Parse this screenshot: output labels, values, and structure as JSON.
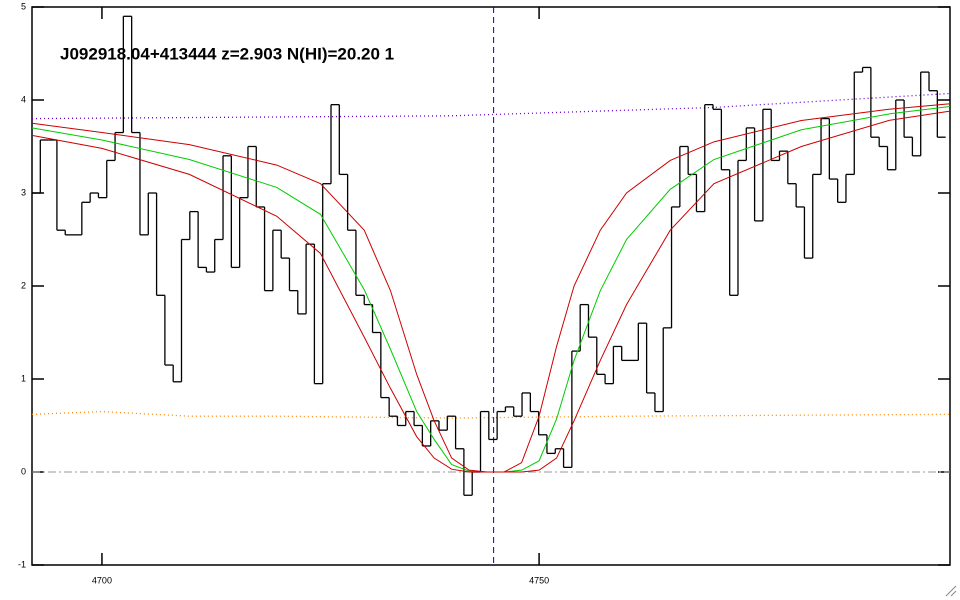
{
  "chart_data": {
    "type": "histogram",
    "title": "J092918.04+413444 z=2.903 N(HI)=20.20 1",
    "color": "#000000",
    "bins": [
      4692.0,
      4692.95,
      4693.9,
      4694.85,
      4695.8,
      4696.75,
      4697.7,
      4698.65,
      4699.6,
      4700.55,
      4701.5,
      4702.45,
      4703.4,
      4704.35,
      4705.3,
      4706.25,
      4707.2,
      4708.15,
      4709.1,
      4710.05,
      4711.0,
      4711.95,
      4712.9,
      4713.85,
      4714.8,
      4715.75,
      4716.7,
      4717.65,
      4718.6,
      4719.55,
      4720.5,
      4721.45,
      4722.4,
      4723.35,
      4724.3,
      4725.25,
      4726.2,
      4727.15,
      4728.1,
      4729.05,
      4730.0,
      4730.95,
      4731.9,
      4732.85,
      4733.8,
      4734.75,
      4735.7,
      4736.65,
      4737.6,
      4738.55,
      4739.5,
      4740.45,
      4741.4,
      4742.35,
      4743.3,
      4744.25,
      4745.2,
      4746.15,
      4747.1,
      4748.05,
      4749.0,
      4749.95,
      4750.9,
      4751.85,
      4752.8,
      4753.75,
      4754.7,
      4755.65,
      4756.6,
      4757.55,
      4758.5,
      4759.45,
      4760.4,
      4761.35,
      4762.3,
      4763.25,
      4764.2,
      4765.15,
      4766.1,
      4767.05,
      4768.0,
      4768.95,
      4769.9,
      4770.85,
      4771.8,
      4772.75,
      4773.7,
      4774.65,
      4775.6,
      4776.55,
      4777.5,
      4778.45,
      4779.4,
      4780.35,
      4781.3,
      4782.25,
      4783.2,
      4784.15,
      4785.1,
      4786.05,
      4787.0,
      4787.95,
      4788.9,
      4789.85,
      4790.8,
      4791.75,
      4792.7,
      4793.65,
      4794.6,
      4795.55,
      4796.5
    ],
    "values": [
      3.0,
      3.57,
      3.57,
      2.6,
      2.55,
      2.55,
      2.9,
      3.0,
      2.95,
      3.35,
      3.65,
      4.9,
      3.65,
      2.55,
      3.0,
      1.9,
      1.15,
      0.97,
      2.5,
      2.8,
      2.2,
      2.15,
      2.5,
      3.4,
      2.2,
      2.95,
      3.5,
      2.85,
      1.95,
      2.6,
      2.3,
      1.95,
      1.7,
      2.45,
      0.95,
      3.1,
      3.95,
      3.2,
      2.6,
      1.9,
      1.8,
      1.5,
      0.8,
      0.6,
      0.5,
      0.65,
      0.5,
      0.28,
      0.55,
      0.45,
      0.6,
      0.25,
      -0.25,
      0.0,
      0.65,
      0.35,
      0.65,
      0.7,
      0.6,
      0.85,
      0.65,
      0.4,
      0.2,
      0.25,
      0.05,
      1.3,
      1.8,
      1.45,
      1.05,
      0.95,
      1.35,
      1.2,
      1.2,
      1.6,
      0.85,
      0.65,
      1.55,
      2.85,
      3.5,
      3.2,
      2.8,
      3.95,
      3.9,
      3.25,
      1.9,
      3.35,
      3.7,
      2.7,
      3.9,
      3.35,
      3.45,
      3.1,
      2.85,
      2.3,
      3.2,
      3.8,
      3.15,
      2.9,
      3.2,
      4.3,
      4.35,
      3.6,
      3.5,
      3.25,
      4.0,
      3.6,
      3.4,
      4.3,
      4.1,
      3.6
    ],
    "series": [
      {
        "color": "#00cc00",
        "style": "solid",
        "x": [
          4692,
          4700,
          4710,
          4720,
          4725,
          4730,
          4733,
          4736,
          4738,
          4740,
          4742,
          4744,
          4746,
          4748,
          4750,
          4752,
          4754,
          4757,
          4760,
          4765,
          4770,
          4780,
          4790,
          4797
        ],
        "values": [
          3.7,
          3.57,
          3.36,
          3.06,
          2.77,
          1.96,
          1.32,
          0.65,
          0.35,
          0.08,
          0.01,
          0.0,
          0.0,
          0.02,
          0.12,
          0.57,
          1.2,
          1.95,
          2.5,
          3.04,
          3.36,
          3.68,
          3.85,
          3.93
        ]
      },
      {
        "color": "#cc0000",
        "style": "solid",
        "x": [
          4692,
          4700,
          4710,
          4720,
          4725,
          4730,
          4733,
          4736,
          4738,
          4740,
          4742,
          4744,
          4746,
          4748,
          4750,
          4752,
          4754,
          4757,
          4760,
          4765,
          4770,
          4780,
          4790,
          4797
        ],
        "values": [
          3.75,
          3.65,
          3.52,
          3.3,
          3.1,
          2.6,
          1.95,
          1.05,
          0.55,
          0.15,
          0.02,
          0.0,
          0.0,
          0.1,
          0.6,
          1.35,
          2.0,
          2.6,
          3.0,
          3.35,
          3.55,
          3.78,
          3.9,
          3.96
        ]
      },
      {
        "color": "#cc0000",
        "style": "solid",
        "x": [
          4692,
          4700,
          4710,
          4720,
          4725,
          4730,
          4733,
          4736,
          4738,
          4740,
          4742,
          4744,
          4746,
          4748,
          4750,
          4752,
          4754,
          4757,
          4760,
          4765,
          4770,
          4780,
          4790,
          4797
        ],
        "values": [
          3.62,
          3.48,
          3.2,
          2.75,
          2.35,
          1.45,
          0.9,
          0.38,
          0.15,
          0.03,
          0.0,
          0.0,
          0.0,
          0.0,
          0.02,
          0.15,
          0.55,
          1.2,
          1.8,
          2.6,
          3.1,
          3.5,
          3.78,
          3.88
        ]
      },
      {
        "color": "#6600cc",
        "style": "dotted",
        "x": [
          4692,
          4740,
          4770,
          4797
        ],
        "values": [
          3.8,
          3.83,
          3.92,
          4.07
        ]
      },
      {
        "color": "#ff8800",
        "style": "dotted",
        "x": [
          4692,
          4700,
          4710,
          4720,
          4740,
          4760,
          4797
        ],
        "values": [
          0.62,
          0.65,
          0.6,
          0.6,
          0.58,
          0.6,
          0.62
        ]
      }
    ],
    "vline": {
      "value": 4744.8,
      "color": "#0000cc",
      "style": "dashed"
    },
    "hline": {
      "value": 0,
      "color": "#999999",
      "style": "dashdot"
    },
    "xlim": [
      4692,
      4797
    ],
    "ylim": [
      -1,
      5
    ],
    "xticks": [
      4700,
      4750
    ],
    "yticks": [
      -1,
      0,
      1,
      2,
      3,
      4,
      5
    ]
  }
}
